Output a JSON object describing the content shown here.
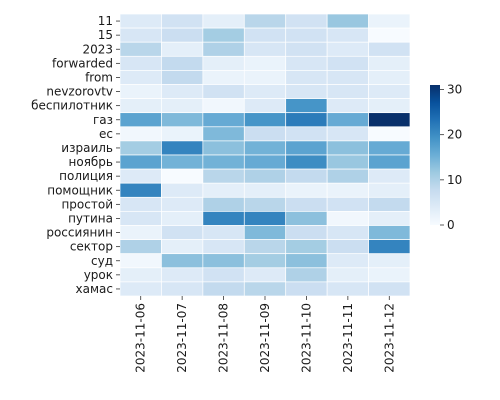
{
  "chart_data": {
    "type": "heatmap",
    "title": "",
    "xlabel": "",
    "ylabel": "",
    "x_categories": [
      "2023-11-06",
      "2023-11-07",
      "2023-11-08",
      "2023-11-09",
      "2023-11-10",
      "2023-11-11",
      "2023-11-12"
    ],
    "y_categories": [
      "11",
      "15",
      "2023",
      "forwarded",
      "from",
      "nevzorovtv",
      "беспилотник",
      "газ",
      "ес",
      "израиль",
      "ноябрь",
      "полиция",
      "помощник",
      "простой",
      "путина",
      "россиянин",
      "сектор",
      "суд",
      "урок",
      "хамас"
    ],
    "values": [
      [
        4,
        6,
        3,
        9,
        6,
        12,
        2
      ],
      [
        5,
        7,
        11,
        6,
        6,
        5,
        0
      ],
      [
        9,
        3,
        10,
        5,
        6,
        4,
        6
      ],
      [
        5,
        8,
        3,
        2,
        5,
        6,
        3
      ],
      [
        4,
        8,
        2,
        2,
        5,
        5,
        3
      ],
      [
        2,
        4,
        6,
        4,
        5,
        5,
        4
      ],
      [
        3,
        3,
        1,
        4,
        19,
        4,
        3
      ],
      [
        17,
        14,
        16,
        19,
        22,
        16,
        31
      ],
      [
        1,
        2,
        14,
        7,
        6,
        5,
        0
      ],
      [
        11,
        21,
        13,
        15,
        17,
        13,
        16
      ],
      [
        17,
        15,
        15,
        16,
        20,
        12,
        17
      ],
      [
        4,
        0,
        9,
        10,
        8,
        10,
        4
      ],
      [
        21,
        4,
        3,
        3,
        2,
        2,
        3
      ],
      [
        5,
        4,
        10,
        9,
        7,
        6,
        8
      ],
      [
        5,
        3,
        21,
        21,
        13,
        1,
        3
      ],
      [
        2,
        6,
        5,
        14,
        7,
        5,
        14
      ],
      [
        10,
        3,
        5,
        9,
        11,
        7,
        21
      ],
      [
        1,
        13,
        13,
        11,
        13,
        4,
        3
      ],
      [
        3,
        4,
        6,
        4,
        10,
        3,
        2
      ],
      [
        4,
        5,
        8,
        9,
        7,
        5,
        6
      ]
    ],
    "colorbar": {
      "min": 0,
      "max": 31,
      "ticks": [
        0,
        10,
        20,
        30
      ]
    },
    "colormap": "Blues",
    "grid": true,
    "cell_border_color": "#ffffff"
  }
}
